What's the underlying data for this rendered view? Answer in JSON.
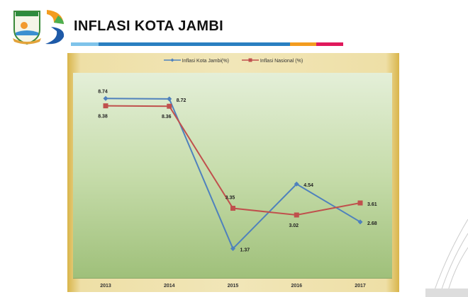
{
  "header": {
    "title": "INFLASI KOTA JAMBI",
    "logo_text": "KOTA JAMBI"
  },
  "colors": {
    "series1": "#4f81bd",
    "series2": "#c0504d",
    "bar_light": "#7ec3ea",
    "bar_blue": "#2a7fc1",
    "bar_orange": "#f39c1f",
    "bar_pink": "#e0195c"
  },
  "chart_data": {
    "type": "line",
    "title": "",
    "xlabel": "",
    "ylabel": "",
    "categories": [
      "2013",
      "2014",
      "2015",
      "2016",
      "2017"
    ],
    "ylim": [
      0,
      10
    ],
    "grid": false,
    "legend_position": "top-center",
    "series": [
      {
        "name": "Inflasi Kota Jambi(%)",
        "values": [
          8.74,
          8.72,
          1.37,
          4.54,
          2.68
        ],
        "labels": [
          "8.74",
          "8.72",
          "1.37",
          "4.54",
          "2.68"
        ],
        "marker": "diamond"
      },
      {
        "name": "Inflasi Nasional (%)",
        "values": [
          8.38,
          8.36,
          3.35,
          3.02,
          3.61
        ],
        "labels": [
          "8.38",
          "8.36",
          "3.35",
          "3.02",
          "3.61"
        ],
        "marker": "square"
      }
    ]
  }
}
